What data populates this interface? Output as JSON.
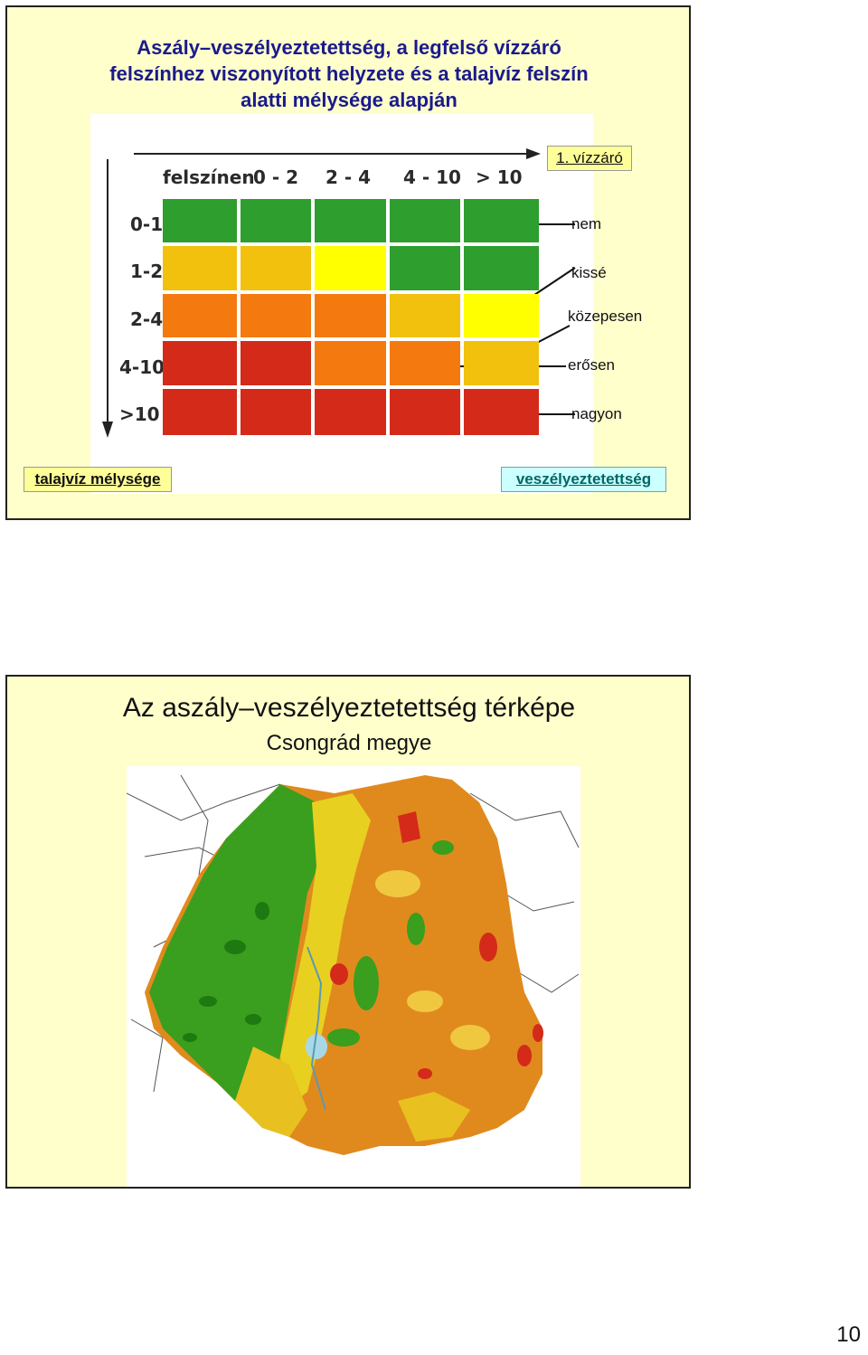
{
  "slide1": {
    "title_lines": [
      "Aszály–veszélyeztetettség, a legfelső vízzáró",
      "felszínhez viszonyított helyzete és a talajvíz felszín",
      "alatti mélysége alapján"
    ],
    "column_headers": [
      "felszínen",
      "0 - 2",
      "2 - 4",
      "4 - 10",
      "> 10"
    ],
    "row_headers": [
      "0-1",
      "1-2",
      "2-4",
      "4-10",
      ">10"
    ],
    "top_box": "1. vízzáró",
    "danger_levels": [
      "nem",
      "kissé",
      "közepesen",
      "erősen",
      "nagyon"
    ],
    "left_box": "talajvíz mélysége",
    "right_box": "veszélyeztetettség",
    "grid_colors": [
      [
        "#2e9e2e",
        "#2e9e2e",
        "#2e9e2e",
        "#2e9e2e",
        "#2e9e2e"
      ],
      [
        "#f2c10e",
        "#f2c10e",
        "#ffff00",
        "#2e9e2e",
        "#2e9e2e"
      ],
      [
        "#f47a10",
        "#f47a10",
        "#f47a10",
        "#f2c10e",
        "#ffff00"
      ],
      [
        "#d42a1a",
        "#d42a1a",
        "#f47a10",
        "#f47a10",
        "#f2c10e"
      ],
      [
        "#d42a1a",
        "#d42a1a",
        "#d42a1a",
        "#d42a1a",
        "#d42a1a"
      ]
    ]
  },
  "slide2": {
    "title": "Az aszály–veszélyeztetettség térképe",
    "subtitle": "Csongrád megye"
  },
  "page_number": "10"
}
